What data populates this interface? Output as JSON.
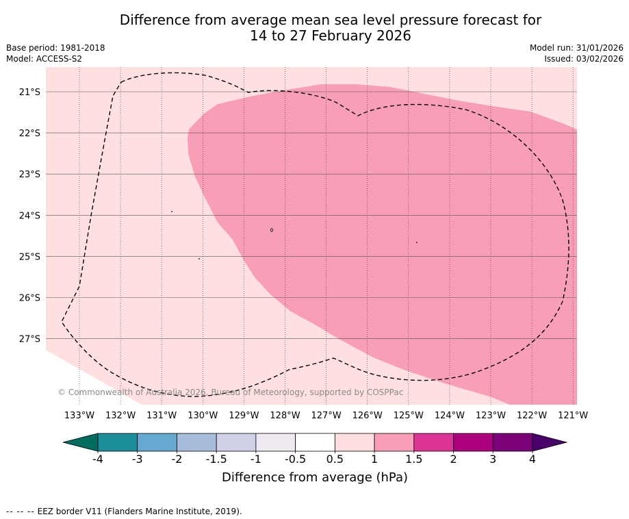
{
  "title": {
    "line1": "Difference from average mean sea level pressure forecast for",
    "line2": "14 to 27 February 2026"
  },
  "meta": {
    "base_period": "Base period: 1981-2018",
    "model": "Model: ACCESS-S2",
    "model_run": "Model run: 31/01/2026",
    "issued": "Issued: 03/02/2026"
  },
  "map": {
    "longitude_labels": [
      "133°W",
      "132°W",
      "131°W",
      "130°W",
      "129°W",
      "128°W",
      "127°W",
      "126°W",
      "125°W",
      "124°W",
      "123°W",
      "122°W",
      "121°W"
    ],
    "latitude_labels": [
      "21°S",
      "22°S",
      "23°S",
      "24°S",
      "25°S",
      "26°S",
      "27°S"
    ],
    "copyright": "© Commonwealth of Australia 2026, Bureau of Meteorology, supported by COSPPac",
    "colors": {
      "background_band": "#fde0df",
      "anomaly_region": "#f99eb7"
    }
  },
  "legend": {
    "tick_labels": [
      "-4",
      "-3",
      "-2",
      "-1.5",
      "-1",
      "-0.5",
      "0.5",
      "1",
      "1.5",
      "2",
      "3",
      "4"
    ],
    "colors": [
      "#006d5e",
      "#1b8e9a",
      "#66a9d0",
      "#a8bddc",
      "#d0d1e6",
      "#efe9f2",
      "#ffffff",
      "#fde0df",
      "#f99eb7",
      "#dd3497",
      "#ae017e",
      "#7a0177",
      "#49006a"
    ],
    "label": "Difference from average (hPa)"
  },
  "footer": {
    "dash_symbol": "-- -- --",
    "eez_note": "EEZ border V11 (Flanders Marine Institute, 2019)."
  }
}
